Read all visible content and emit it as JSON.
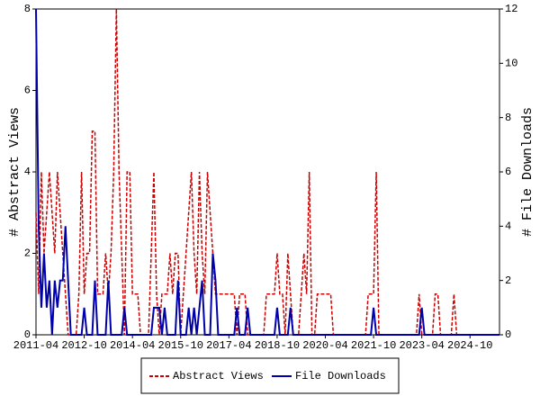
{
  "chart_data": {
    "type": "line",
    "y_label": "# Abstract Views",
    "y2_label": "# File Downloads",
    "legend": "bottom",
    "ylim": [
      0,
      8
    ],
    "yticks": [
      0,
      2,
      4,
      6,
      8
    ],
    "y2lim": [
      0,
      12
    ],
    "y2ticks": [
      0,
      2,
      4,
      6,
      8,
      10,
      12
    ],
    "xtick_every": 18,
    "x": [
      "2011-04",
      "2011-05",
      "2011-06",
      "2011-07",
      "2011-08",
      "2011-09",
      "2011-10",
      "2011-11",
      "2011-12",
      "2012-01",
      "2012-02",
      "2012-03",
      "2012-04",
      "2012-05",
      "2012-06",
      "2012-07",
      "2012-08",
      "2012-09",
      "2012-10",
      "2012-11",
      "2012-12",
      "2013-01",
      "2013-02",
      "2013-03",
      "2013-04",
      "2013-05",
      "2013-06",
      "2013-07",
      "2013-08",
      "2013-09",
      "2013-10",
      "2013-11",
      "2013-12",
      "2014-01",
      "2014-02",
      "2014-03",
      "2014-04",
      "2014-05",
      "2014-06",
      "2014-07",
      "2014-08",
      "2014-09",
      "2014-10",
      "2014-11",
      "2014-12",
      "2015-01",
      "2015-02",
      "2015-03",
      "2015-04",
      "2015-05",
      "2015-06",
      "2015-07",
      "2015-08",
      "2015-09",
      "2015-10",
      "2015-11",
      "2015-12",
      "2016-01",
      "2016-02",
      "2016-03",
      "2016-04",
      "2016-05",
      "2016-06",
      "2016-07",
      "2016-08",
      "2016-09",
      "2016-10",
      "2016-11",
      "2016-12",
      "2017-01",
      "2017-02",
      "2017-03",
      "2017-04",
      "2017-05",
      "2017-06",
      "2017-07",
      "2017-08",
      "2017-09",
      "2017-10",
      "2017-11",
      "2017-12",
      "2018-01",
      "2018-02",
      "2018-03",
      "2018-04",
      "2018-05",
      "2018-06",
      "2018-07",
      "2018-08",
      "2018-09",
      "2018-10",
      "2018-11",
      "2018-12",
      "2019-01",
      "2019-02",
      "2019-03",
      "2019-04",
      "2019-05",
      "2019-06",
      "2019-07",
      "2019-08",
      "2019-09",
      "2019-10",
      "2019-11",
      "2019-12",
      "2020-01",
      "2020-02",
      "2020-03",
      "2020-04",
      "2020-05",
      "2020-06",
      "2020-07",
      "2020-08",
      "2020-09",
      "2020-10",
      "2020-11",
      "2020-12",
      "2021-01",
      "2021-02",
      "2021-03",
      "2021-04",
      "2021-05",
      "2021-06",
      "2021-07",
      "2021-08",
      "2021-09",
      "2021-10",
      "2021-11",
      "2021-12",
      "2022-01",
      "2022-02",
      "2022-03",
      "2022-04",
      "2022-05",
      "2022-06",
      "2022-07",
      "2022-08",
      "2022-09",
      "2022-10",
      "2022-11",
      "2022-12",
      "2023-01",
      "2023-02",
      "2023-03",
      "2023-04",
      "2023-05",
      "2023-06",
      "2023-07",
      "2023-08",
      "2023-09",
      "2023-10",
      "2023-11",
      "2023-12",
      "2024-01",
      "2024-02",
      "2024-03",
      "2024-04",
      "2024-05",
      "2024-06",
      "2024-07",
      "2024-08",
      "2024-09",
      "2024-10",
      "2024-11",
      "2024-12",
      "2025-01",
      "2025-02",
      "2025-03",
      "2025-04",
      "2025-05",
      "2025-06",
      "2025-07",
      "2025-08",
      "2025-09"
    ],
    "series": [
      {
        "name": "Abstract Views",
        "color": "#cc0000",
        "style": "dashed",
        "axis": "y",
        "values": [
          3,
          1,
          4,
          2,
          3,
          4,
          3,
          2,
          4,
          3,
          2,
          1,
          0,
          0,
          0,
          0,
          1,
          4,
          1,
          2,
          2,
          5,
          5,
          1,
          1,
          1,
          2,
          1,
          2,
          4,
          8,
          4,
          2,
          0,
          4,
          4,
          1,
          1,
          1,
          0,
          0,
          0,
          0,
          2,
          4,
          1,
          0,
          1,
          1,
          1,
          2,
          1,
          2,
          2,
          0,
          1,
          2,
          3,
          4,
          2,
          1,
          4,
          2,
          1,
          4,
          3,
          2,
          1,
          1,
          1,
          1,
          1,
          1,
          1,
          1,
          0,
          1,
          1,
          1,
          0,
          0,
          0,
          0,
          0,
          0,
          0,
          1,
          1,
          1,
          1,
          2,
          1,
          1,
          0,
          2,
          1,
          0,
          0,
          0,
          1,
          2,
          1,
          4,
          0,
          0,
          1,
          1,
          1,
          1,
          1,
          1,
          0,
          0,
          0,
          0,
          0,
          0,
          0,
          0,
          0,
          0,
          0,
          0,
          0,
          1,
          1,
          1,
          4,
          0,
          0,
          0,
          0,
          0,
          0,
          0,
          0,
          0,
          0,
          0,
          0,
          0,
          0,
          0,
          1,
          0,
          0,
          0,
          0,
          0,
          1,
          1,
          0,
          0,
          0,
          0,
          0,
          1,
          0,
          0,
          0,
          0,
          0,
          0,
          0,
          0,
          0,
          0,
          0,
          0,
          0,
          0,
          0,
          0,
          0
        ]
      },
      {
        "name": "File Downloads",
        "color": "#0000aa",
        "style": "solid",
        "axis": "y2",
        "values": [
          12,
          4,
          1,
          3,
          1,
          2,
          0,
          2,
          1,
          2,
          2,
          4,
          2,
          0,
          0,
          0,
          0,
          0,
          1,
          0,
          0,
          0,
          2,
          0,
          0,
          0,
          0,
          2,
          0,
          0,
          0,
          0,
          0,
          1,
          0,
          0,
          0,
          0,
          0,
          0,
          0,
          0,
          0,
          0,
          1,
          1,
          1,
          0,
          1,
          0,
          0,
          0,
          0,
          2,
          0,
          0,
          0,
          1,
          0,
          1,
          0,
          1,
          2,
          0,
          0,
          0,
          3,
          2,
          0,
          0,
          0,
          0,
          0,
          0,
          0,
          1,
          0,
          0,
          0,
          1,
          0,
          0,
          0,
          0,
          0,
          0,
          0,
          0,
          0,
          0,
          1,
          0,
          0,
          0,
          0,
          1,
          0,
          0,
          0,
          0,
          0,
          0,
          0,
          0,
          0,
          0,
          0,
          0,
          0,
          0,
          0,
          0,
          0,
          0,
          0,
          0,
          0,
          0,
          0,
          0,
          0,
          0,
          0,
          0,
          0,
          0,
          1,
          0,
          0,
          0,
          0,
          0,
          0,
          0,
          0,
          0,
          0,
          0,
          0,
          0,
          0,
          0,
          0,
          0,
          1,
          0,
          0,
          0,
          0,
          0,
          0,
          0,
          0,
          0,
          0,
          0,
          0,
          0,
          0,
          0,
          0,
          0,
          0,
          0,
          0,
          0,
          0,
          0,
          0,
          0,
          0,
          0,
          0,
          0
        ]
      }
    ]
  }
}
